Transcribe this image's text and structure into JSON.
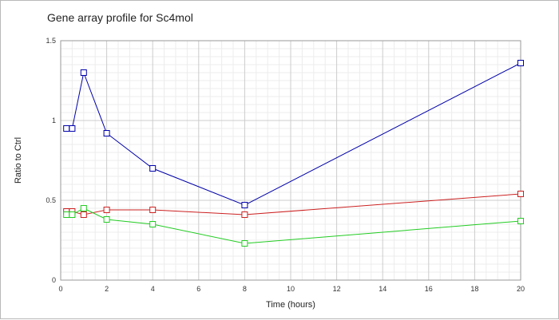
{
  "chart_data": {
    "type": "line",
    "title": "Gene array profile for Sc4mol",
    "xlabel": "Time (hours)",
    "ylabel": "Ratio to Ctrl",
    "xlim": [
      0,
      20
    ],
    "ylim": [
      0,
      1.5
    ],
    "x_ticks": [
      0,
      2,
      4,
      6,
      8,
      10,
      12,
      14,
      16,
      18,
      20
    ],
    "x_tick_labels": [
      "0",
      "2",
      "4",
      "6",
      "8",
      "10",
      "12",
      "14",
      "16",
      "18",
      "20"
    ],
    "y_ticks": [
      0,
      0.5,
      1,
      1.5
    ],
    "y_tick_labels": [
      "0",
      "0.5",
      "1",
      "1.5"
    ],
    "grid": true,
    "legend": "none",
    "marker": "square",
    "series": [
      {
        "color": "#0000aa",
        "x": [
          0.25,
          0.5,
          1,
          2,
          4,
          8,
          20
        ],
        "y": [
          0.95,
          0.95,
          1.3,
          0.92,
          0.7,
          0.47,
          1.36
        ]
      },
      {
        "color": "#cc2020",
        "x": [
          0.25,
          0.5,
          1,
          2,
          4,
          8,
          20
        ],
        "y": [
          0.43,
          0.43,
          0.41,
          0.44,
          0.44,
          0.41,
          0.54
        ]
      },
      {
        "color": "#22cc22",
        "x": [
          0.25,
          0.5,
          1,
          2,
          4,
          8,
          20
        ],
        "y": [
          0.41,
          0.41,
          0.45,
          0.38,
          0.35,
          0.23,
          0.37
        ]
      }
    ]
  }
}
